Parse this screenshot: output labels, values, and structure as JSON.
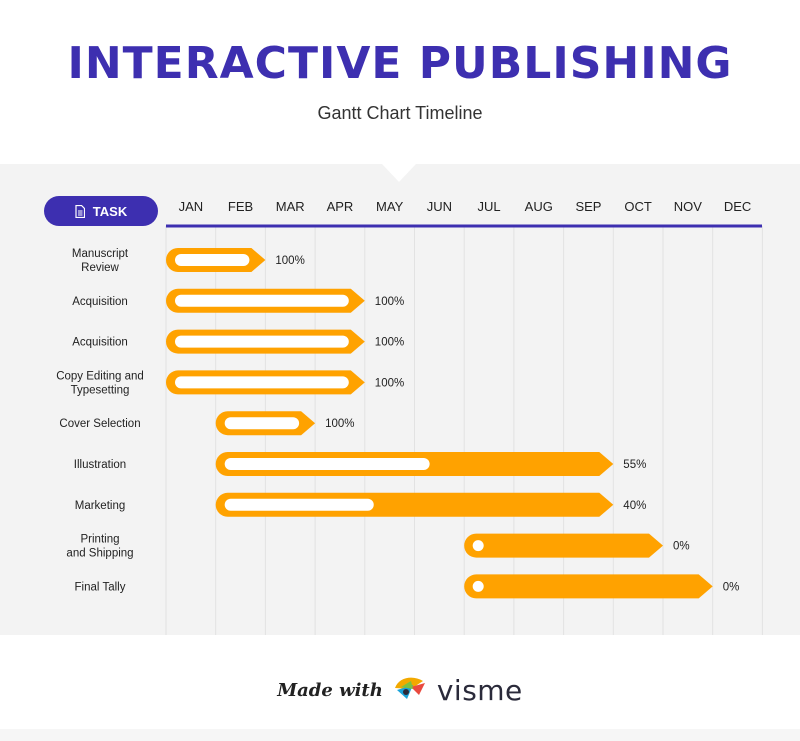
{
  "header": {
    "title": "INTERACTIVE PUBLISHING",
    "subtitle": "Gantt Chart Timeline"
  },
  "task_label": "TASK",
  "footer": {
    "made_with": "Made with",
    "brand": "visme"
  },
  "colors": {
    "accent": "#3d2fb0",
    "bar": "#ffa200",
    "progress": "#ffffff",
    "panel": "#f3f3f3"
  },
  "chart_data": {
    "type": "gantt",
    "months": [
      "JAN",
      "FEB",
      "MAR",
      "APR",
      "MAY",
      "JUN",
      "JUL",
      "AUG",
      "SEP",
      "OCT",
      "NOV",
      "DEC"
    ],
    "tasks": [
      {
        "name": "Manuscript\nReview",
        "start": "JAN",
        "end": "FEB",
        "progress": 100,
        "label": "100%"
      },
      {
        "name": "Acquisition",
        "start": "JAN",
        "end": "APR",
        "progress": 100,
        "label": "100%"
      },
      {
        "name": "Acquisition",
        "start": "JAN",
        "end": "APR",
        "progress": 100,
        "label": "100%"
      },
      {
        "name": "Copy Editing and\nTypesetting",
        "start": "JAN",
        "end": "APR",
        "progress": 100,
        "label": "100%"
      },
      {
        "name": "Cover Selection",
        "start": "FEB",
        "end": "MAR",
        "progress": 100,
        "label": "100%"
      },
      {
        "name": "Illustration",
        "start": "FEB",
        "end": "SEP",
        "progress": 55,
        "label": "55%"
      },
      {
        "name": "Marketing",
        "start": "FEB",
        "end": "SEP",
        "progress": 40,
        "label": "40%"
      },
      {
        "name": "Printing\nand Shipping",
        "start": "JUL",
        "end": "OCT",
        "progress": 0,
        "label": "0%"
      },
      {
        "name": "Final Tally",
        "start": "JUL",
        "end": "NOV",
        "progress": 0,
        "label": "0%"
      }
    ]
  }
}
